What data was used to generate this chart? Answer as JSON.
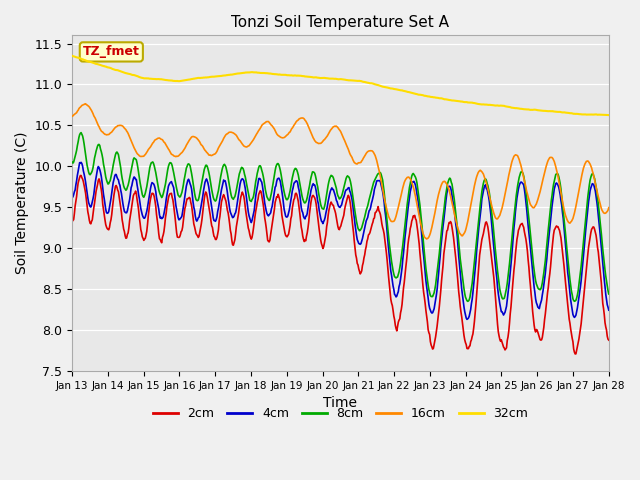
{
  "title": "Tonzi Soil Temperature Set A",
  "xlabel": "Time",
  "ylabel": "Soil Temperature (C)",
  "ylim": [
    7.5,
    11.6
  ],
  "xlim": [
    0,
    360
  ],
  "plot_bg": "#e8e8e8",
  "fig_bg": "#f0f0f0",
  "annotation_text": "TZ_fmet",
  "annotation_bg": "#ffffcc",
  "annotation_border": "#bbaa00",
  "annotation_text_color": "#cc0000",
  "series": {
    "2cm": {
      "color": "#dd0000",
      "linewidth": 1.2
    },
    "4cm": {
      "color": "#0000cc",
      "linewidth": 1.2
    },
    "8cm": {
      "color": "#00aa00",
      "linewidth": 1.2
    },
    "16cm": {
      "color": "#ff8800",
      "linewidth": 1.2
    },
    "32cm": {
      "color": "#ffdd00",
      "linewidth": 1.5
    }
  },
  "xtick_labels": [
    "Jan 13",
    "Jan 14",
    "Jan 15",
    "Jan 16",
    "Jan 17",
    "Jan 18",
    "Jan 19",
    "Jan 20",
    "Jan 21",
    "Jan 22",
    "Jan 23",
    "Jan 24",
    "Jan 25",
    "Jan 26",
    "Jan 27",
    "Jan 28"
  ],
  "xtick_positions": [
    0,
    24,
    48,
    72,
    96,
    120,
    144,
    168,
    192,
    216,
    240,
    264,
    288,
    312,
    336,
    360
  ],
  "ytick_positions": [
    7.5,
    8.0,
    8.5,
    9.0,
    9.5,
    10.0,
    10.5,
    11.0,
    11.5
  ],
  "legend_labels": [
    "2cm",
    "4cm",
    "8cm",
    "16cm",
    "32cm"
  ],
  "legend_colors": [
    "#dd0000",
    "#0000cc",
    "#00aa00",
    "#ff8800",
    "#ffdd00"
  ]
}
